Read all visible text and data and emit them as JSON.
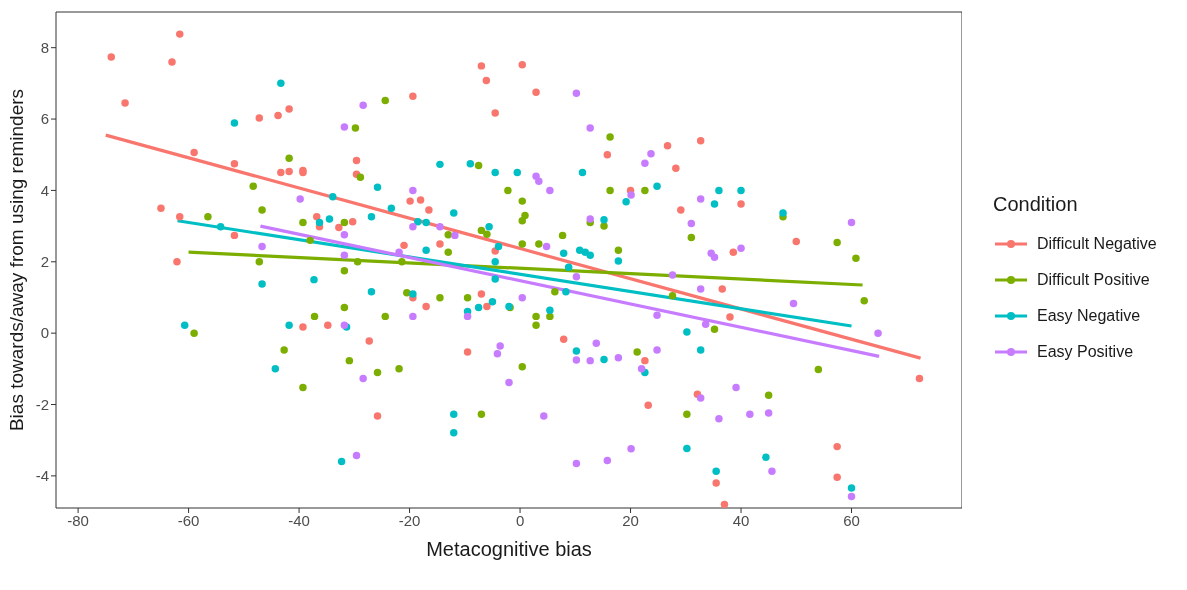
{
  "chart_data": {
    "type": "scatter",
    "xlabel": "Metacognitive bias",
    "ylabel": "Bias towards/away from using reminders",
    "legend_title": "Condition",
    "legend": "right",
    "xlim": [
      -84,
      80
    ],
    "ylim": [
      -4.9,
      9
    ],
    "xticks": [
      -80,
      -60,
      -40,
      -20,
      0,
      20,
      40,
      60
    ],
    "yticks": [
      -4,
      -2,
      0,
      2,
      4,
      6,
      8
    ],
    "series": [
      {
        "name": "Difficult Negative",
        "color": "#f8766d",
        "marker": "circle",
        "x": [
          -74,
          -71.5,
          -63,
          -61.6,
          -59,
          -51.7,
          -47.2,
          -43.8,
          -41.8,
          -43.3,
          -41.8,
          -39.3,
          -39.3,
          -65,
          -61.6,
          -51.7,
          -36.8,
          -36.3,
          -32.8,
          -30.3,
          -29.6,
          -29.6,
          -62.1,
          -39.3,
          -34.8,
          -19.4,
          -7,
          -6.1,
          0.4,
          2.9,
          -4.5,
          -19.9,
          -18,
          -16.5,
          -21,
          -14.5,
          -4.5,
          15.8,
          20,
          -19.4,
          -17,
          -7,
          -6,
          -27.3,
          -9.5,
          -25.8,
          7.9,
          22.6,
          23.2,
          26.7,
          32.7,
          28.2,
          29.1,
          40,
          50,
          38.6,
          36.6,
          38,
          72.3,
          32.1,
          57.4,
          57.4,
          35.5,
          37
        ],
        "values": [
          7.74,
          6.45,
          7.6,
          8.38,
          5.06,
          4.75,
          6.03,
          6.1,
          6.28,
          4.5,
          4.53,
          4.56,
          4.5,
          3.5,
          3.26,
          2.74,
          3.26,
          2.98,
          2.96,
          3.12,
          4.84,
          4.45,
          2.0,
          0.17,
          0.22,
          6.64,
          7.49,
          7.08,
          7.52,
          6.75,
          6.17,
          3.7,
          3.73,
          3.45,
          2.46,
          2.5,
          2.3,
          5.0,
          4.0,
          0.99,
          0.75,
          1.1,
          0.75,
          -0.22,
          -0.53,
          -2.32,
          -0.17,
          -0.77,
          -2.02,
          5.25,
          5.39,
          4.62,
          3.45,
          3.62,
          2.57,
          2.27,
          1.24,
          0.45,
          -1.27,
          -1.71,
          -3.18,
          -4.04,
          -4.2,
          -4.8
        ]
      },
      {
        "name": "Difficult Positive",
        "color": "#7cae00",
        "marker": "circle",
        "x": [
          -56.5,
          -48.3,
          -46.7,
          -41.8,
          -39.3,
          -31.8,
          -29.8,
          -38,
          -47.2,
          -59,
          -31.8,
          -31.8,
          -37.2,
          -42.7,
          -30.9,
          -39.3,
          -24.4,
          -28.9,
          -7.5,
          -2.2,
          0.4,
          0.9,
          0.4,
          16.3,
          16.3,
          22.6,
          7.7,
          12.7,
          15.2,
          17.8,
          3.4,
          0.4,
          -7,
          -6,
          -13,
          -13,
          -29.4,
          -21.4,
          -24.4,
          -20.5,
          -14.5,
          -9.5,
          -1.8,
          2.9,
          2.9,
          5.4,
          6.3,
          -25.8,
          -21.9,
          0.4,
          -7,
          21.2,
          60.8,
          62.3,
          54,
          45,
          30.2,
          35.2,
          27.6,
          47.6,
          31,
          57.4
        ],
        "values": [
          3.26,
          4.12,
          3.45,
          4.9,
          3.1,
          3.1,
          5.75,
          2.6,
          2.0,
          0,
          1.75,
          0.72,
          0.47,
          -0.47,
          -0.77,
          -1.52,
          6.52,
          4.37,
          4.7,
          4.0,
          3.7,
          3.3,
          3.15,
          5.5,
          4.0,
          4.0,
          2.74,
          3.1,
          3.0,
          2.32,
          2.5,
          2.5,
          2.88,
          2.77,
          2.76,
          2.27,
          2.0,
          2.0,
          0.47,
          1.13,
          0.99,
          0.99,
          0.72,
          0.47,
          0.22,
          0.47,
          1.16,
          -1.1,
          -1.0,
          -0.94,
          -2.27,
          -0.53,
          2.1,
          0.91,
          -1.02,
          -1.74,
          -2.27,
          0.11,
          1.05,
          3.26,
          2.68,
          2.54
        ]
      },
      {
        "name": "Easy Negative",
        "color": "#00bfc4",
        "marker": "circle",
        "x": [
          -43.3,
          -51.7,
          -33.9,
          -34.5,
          -36.3,
          -54.2,
          -60.7,
          -46.7,
          -37.3,
          -41.8,
          -31.4,
          -44.3,
          -32.3,
          -14.5,
          -9,
          -4.5,
          -0.5,
          11.3,
          -25.8,
          -23.3,
          -26.9,
          -12,
          -18.5,
          -17,
          -5.6,
          -3.9,
          -17,
          7.9,
          10.8,
          11.8,
          12.7,
          15.2,
          19.2,
          24.8,
          8.8,
          36,
          40,
          35.2,
          47.6,
          -4.5,
          -4.5,
          -26.9,
          -19.4,
          -9.5,
          -7.5,
          -5,
          -2,
          5.4,
          8.3,
          17.8,
          10.2,
          15.2,
          22.6,
          -12,
          -12,
          30.2,
          32.7,
          30.2,
          35.5,
          44.5,
          60
        ],
        "values": [
          7.0,
          5.89,
          3.82,
          3.2,
          3.1,
          2.98,
          0.22,
          1.38,
          1.5,
          0.22,
          0.17,
          -1.0,
          -3.6,
          4.73,
          4.75,
          4.5,
          4.5,
          4.5,
          4.09,
          3.5,
          3.26,
          3.37,
          3.12,
          3.1,
          2.98,
          2.43,
          2.32,
          2.24,
          2.32,
          2.27,
          2.18,
          3.18,
          3.68,
          4.12,
          1.85,
          4.0,
          4.0,
          3.62,
          3.37,
          2.0,
          1.52,
          1.16,
          1.1,
          0.61,
          0.72,
          0.88,
          0.75,
          0.64,
          1.16,
          2.02,
          -0.5,
          -0.74,
          -1.1,
          -2.27,
          -2.79,
          0.03,
          -0.47,
          -3.23,
          -3.87,
          -3.48,
          -4.34
        ]
      },
      {
        "name": "Easy Positive",
        "color": "#c77cff",
        "marker": "circle",
        "x": [
          -31.8,
          -39.8,
          -46.7,
          -31.8,
          -31.8,
          -31.8,
          -29.6,
          -28.4,
          -19.4,
          -19.4,
          -14.5,
          -11.8,
          -21.9,
          2.9,
          3.4,
          5.4,
          10.2,
          12.7,
          12.7,
          4.8,
          22.6,
          23.7,
          20.1,
          -28.4,
          -19.4,
          -9.5,
          -3.6,
          -4.1,
          -2,
          0.4,
          4.3,
          10.2,
          10.2,
          12.7,
          13.8,
          17.8,
          22,
          24.8,
          24.8,
          10.2,
          15.8,
          20.1,
          27.6,
          32.7,
          33.6,
          49.5,
          64.8,
          39.1,
          32.7,
          36,
          41.6,
          45,
          45.6,
          60,
          35.2,
          32.7,
          31,
          40,
          34.6,
          60
        ],
        "values": [
          5.78,
          3.76,
          2.43,
          2.76,
          2.18,
          0.22,
          -3.43,
          6.39,
          4.0,
          2.98,
          2.98,
          2.74,
          2.27,
          4.4,
          4.26,
          4.0,
          6.72,
          5.75,
          3.2,
          2.43,
          4.76,
          5.03,
          3.87,
          -1.27,
          0.47,
          0.47,
          -0.36,
          -0.58,
          -1.38,
          0.99,
          -2.32,
          1.58,
          -0.75,
          -0.77,
          -0.28,
          -0.69,
          -1.0,
          -0.47,
          0.5,
          -3.65,
          -3.57,
          -3.24,
          1.63,
          1.24,
          0.25,
          0.83,
          0,
          -1.52,
          -1.82,
          -2.4,
          -2.27,
          -2.24,
          -3.87,
          -4.58,
          2.13,
          3.76,
          3.07,
          2.38,
          2.24,
          3.1
        ]
      },
      {
        "type": "line",
        "color": "#f8766d",
        "x": [
          -75,
          72.5
        ],
        "values": [
          5.55,
          -0.7
        ]
      },
      {
        "type": "line",
        "color": "#7cae00",
        "x": [
          -60,
          62
        ],
        "values": [
          2.27,
          1.35
        ]
      },
      {
        "type": "line",
        "color": "#00bfc4",
        "x": [
          -62,
          60
        ],
        "values": [
          3.15,
          0.2
        ]
      },
      {
        "type": "line",
        "color": "#c77cff",
        "x": [
          -47,
          65
        ],
        "values": [
          3.0,
          -0.65
        ]
      }
    ]
  }
}
